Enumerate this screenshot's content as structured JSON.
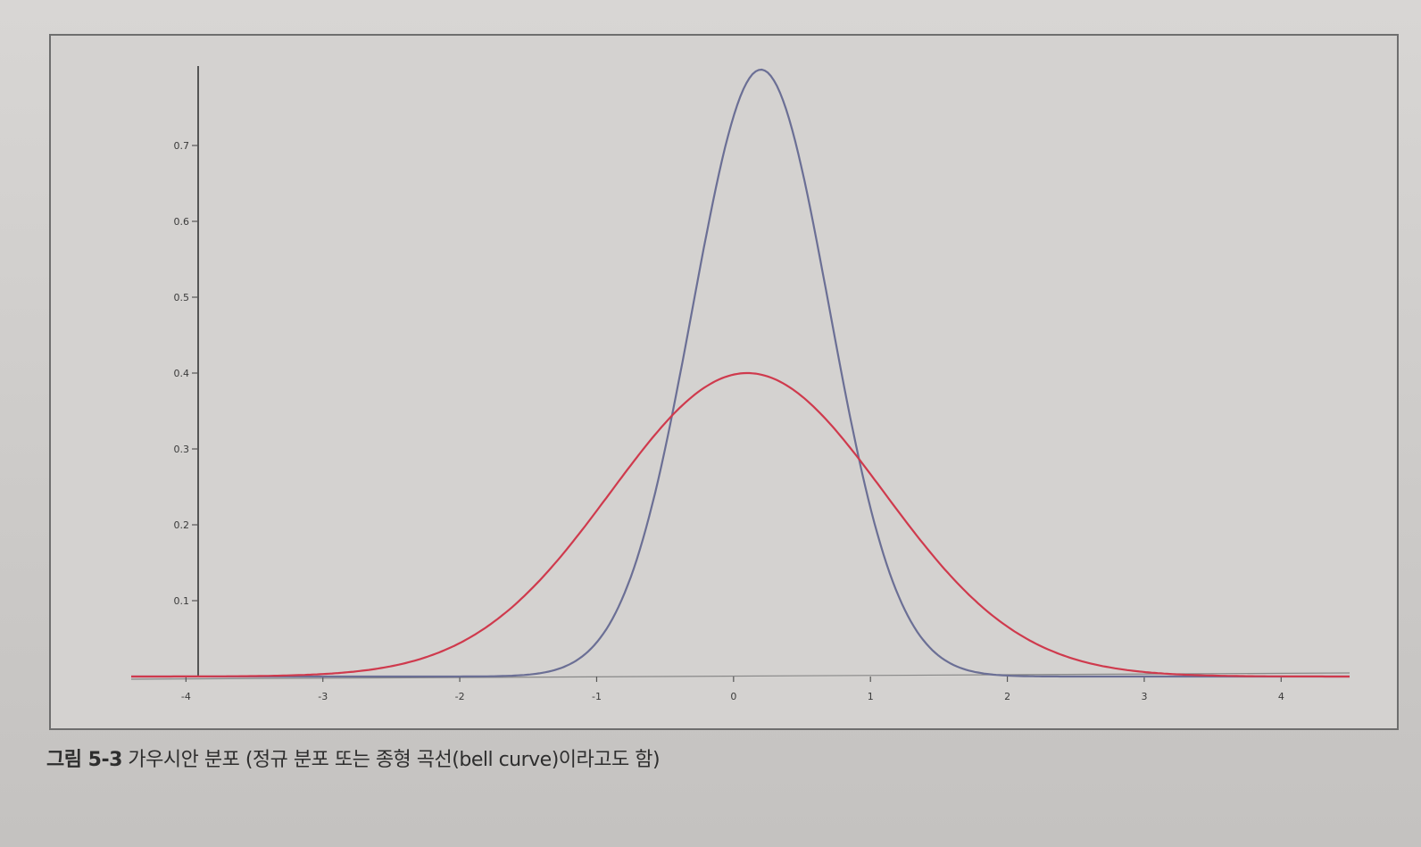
{
  "caption": {
    "figure_number": "그림 5-3",
    "text": "가우시안 분포 (정규 분포 또는 종형 곡선(bell curve)이라고도 함)"
  },
  "chart_data": {
    "type": "line",
    "title": "",
    "xlabel": "",
    "ylabel": "",
    "xlim": [
      -4.4,
      4.5
    ],
    "ylim": [
      0,
      0.8
    ],
    "x_ticks": [
      -4,
      -3,
      -2,
      -1,
      0,
      1,
      2,
      3,
      4
    ],
    "x_tick_labels": [
      "-4",
      "-3",
      "-2",
      "-1",
      "0",
      "1",
      "2",
      "3",
      "4"
    ],
    "y_ticks": [
      0.1,
      0.2,
      0.3,
      0.4,
      0.5,
      0.6,
      0.7
    ],
    "y_tick_labels": [
      "0.1",
      "0.2",
      "0.3",
      "0.4",
      "0.5",
      "0.6",
      "0.7"
    ],
    "grid": false,
    "series": [
      {
        "mean": 0.2,
        "sd": 0.5,
        "peak": 0.8,
        "color": "#6b6f95"
      },
      {
        "mean": 0.1,
        "sd": 1.0,
        "peak": 0.4,
        "color": "#cf3a4d"
      }
    ]
  }
}
